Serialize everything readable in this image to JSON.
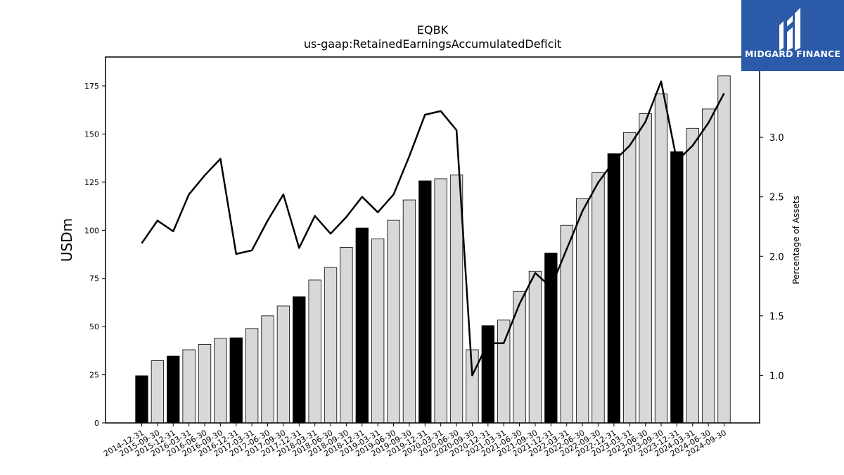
{
  "logo": {
    "text": "MIDGARD FINANCE",
    "bg_color": "#2a5aa8"
  },
  "chart_data": {
    "type": "bar",
    "title": "EQBK",
    "subtitle": "us-gaap:RetainedEarningsAccumulatedDeficit",
    "ylabel": "USDm",
    "y2label": "Percentage of Assets",
    "ylim": [
      0,
      190
    ],
    "y2lim": [
      0.6,
      3.675
    ],
    "yticks": [
      "0",
      "25",
      "50",
      "75",
      "100",
      "125",
      "150",
      "175"
    ],
    "y2ticks": [
      "1.0",
      "1.5",
      "2.0",
      "2.5",
      "3.0"
    ],
    "categories": [
      "2014-12-31",
      "2015-09-30",
      "2015-12-31",
      "2016-03-31",
      "2016-06-30",
      "2016-09-30",
      "2016-12-31",
      "2017-03-31",
      "2017-06-30",
      "2017-09-30",
      "2017-12-31",
      "2018-03-31",
      "2018-06-30",
      "2018-09-30",
      "2018-12-31",
      "2019-03-31",
      "2019-06-30",
      "2019-09-30",
      "2019-12-31",
      "2020-03-31",
      "2020-06-30",
      "2020-09-30",
      "2020-12-31",
      "2021-03-31",
      "2021-06-30",
      "2021-09-30",
      "2021-12-31",
      "2022-03-31",
      "2022-06-30",
      "2022-09-30",
      "2022-12-31",
      "2023-03-31",
      "2023-06-30",
      "2023-09-30",
      "2023-12-31",
      "2024-03-31",
      "2024-06-30",
      "2024-09-30"
    ],
    "series": [
      {
        "type": "bar",
        "values": [
          24.5,
          32.3,
          34.7,
          38.0,
          40.8,
          43.9,
          44.2,
          49.0,
          55.6,
          60.7,
          65.5,
          74.2,
          80.7,
          91.2,
          101.2,
          95.6,
          105.2,
          115.8,
          125.7,
          126.8,
          128.7,
          38.0,
          50.5,
          53.4,
          68.2,
          78.8,
          88.2,
          102.6,
          116.5,
          129.9,
          139.8,
          150.8,
          160.6,
          170.9,
          140.8,
          153.0,
          163.0,
          180.2
        ],
        "highlight": [
          true,
          false,
          true,
          false,
          false,
          false,
          true,
          false,
          false,
          false,
          true,
          false,
          false,
          false,
          true,
          false,
          false,
          false,
          true,
          false,
          false,
          false,
          true,
          false,
          false,
          false,
          true,
          false,
          false,
          false,
          true,
          false,
          false,
          false,
          true,
          false,
          false,
          false
        ]
      },
      {
        "type": "line",
        "axis": "right",
        "values": [
          2.11,
          2.3,
          2.21,
          2.52,
          2.68,
          2.82,
          2.02,
          2.05,
          2.3,
          2.52,
          2.07,
          2.34,
          2.19,
          2.33,
          2.5,
          2.37,
          2.52,
          2.84,
          3.19,
          3.22,
          3.06,
          1.0,
          1.27,
          1.27,
          1.6,
          1.86,
          1.74,
          2.06,
          2.38,
          2.62,
          2.8,
          2.93,
          3.13,
          3.47,
          2.8,
          2.93,
          3.12,
          3.37
        ]
      }
    ],
    "colors": {
      "highlight_bar": "#000000",
      "normal_bar": "#d8d8d8",
      "line": "#000000"
    },
    "grid": false,
    "legend": "none"
  }
}
